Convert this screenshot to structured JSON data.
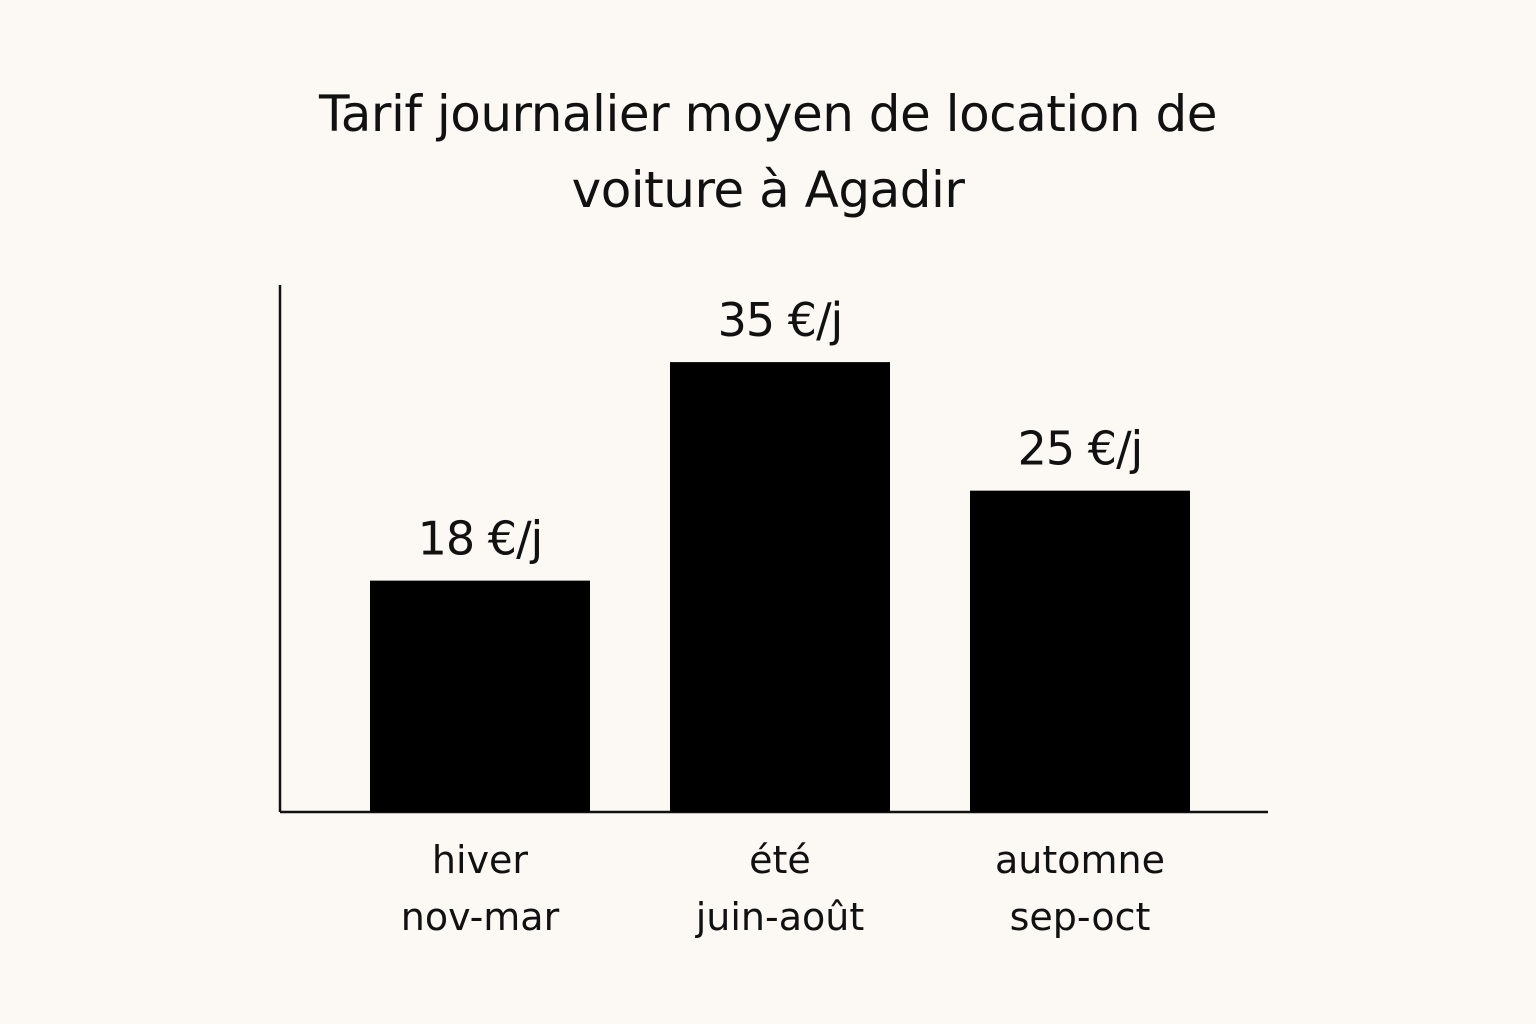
{
  "chart_data": {
    "type": "bar",
    "title": "Tarif journalier moyen de location de voiture à Agadir",
    "categories": [
      "hiver\nnov-mar",
      "été\njuin-août",
      "automne\nsep-oct"
    ],
    "values": [
      18,
      35,
      25
    ],
    "value_labels": [
      "18 €/j",
      "35 €/j",
      "25 €/j"
    ],
    "color": "#000000",
    "ylim": [
      0,
      41
    ]
  }
}
